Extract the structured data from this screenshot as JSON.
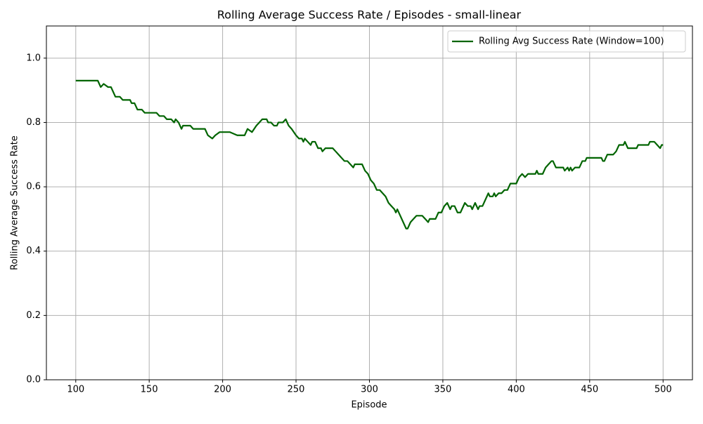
{
  "chart_data": {
    "type": "line",
    "title": "Rolling Average Success Rate / Episodes - small-linear",
    "xlabel": "Episode",
    "ylabel": "Rolling Average Success Rate",
    "x": [
      100,
      115,
      117,
      119,
      122,
      124,
      125,
      127,
      130,
      132,
      135,
      137,
      138,
      140,
      142,
      145,
      147,
      150,
      155,
      157,
      160,
      162,
      165,
      167,
      168,
      170,
      172,
      173,
      178,
      180,
      185,
      188,
      190,
      193,
      195,
      198,
      205,
      210,
      215,
      217,
      220,
      223,
      225,
      227,
      230,
      231,
      233,
      235,
      237,
      238,
      241,
      243,
      245,
      247,
      250,
      252,
      254,
      255,
      256,
      258,
      260,
      261,
      263,
      265,
      267,
      268,
      270,
      275,
      277,
      279,
      281,
      283,
      285,
      287,
      289,
      290,
      295,
      297,
      299,
      301,
      303,
      305,
      307,
      309,
      311,
      313,
      315,
      317,
      318,
      319,
      321,
      323,
      325,
      326,
      328,
      330,
      332,
      336,
      338,
      340,
      341,
      345,
      347,
      349,
      351,
      353,
      355,
      356,
      358,
      360,
      362,
      365,
      367,
      369,
      370,
      372,
      374,
      375,
      377,
      381,
      382,
      384,
      385,
      386,
      388,
      390,
      392,
      394,
      396,
      400,
      402,
      404,
      406,
      408,
      413,
      414,
      415,
      418,
      420,
      422,
      424,
      425,
      427,
      432,
      433,
      435,
      436,
      437,
      438,
      440,
      443,
      445,
      447,
      448,
      458,
      459,
      460,
      462,
      466,
      468,
      470,
      473,
      474,
      476,
      482,
      483,
      490,
      491,
      494,
      496,
      498,
      499,
      500
    ],
    "series": [
      {
        "name": "Rolling Avg Success Rate (Window=100)",
        "color": "#006400",
        "values": [
          0.93,
          0.93,
          0.91,
          0.92,
          0.91,
          0.91,
          0.9,
          0.88,
          0.88,
          0.87,
          0.87,
          0.87,
          0.86,
          0.86,
          0.84,
          0.84,
          0.83,
          0.83,
          0.83,
          0.82,
          0.82,
          0.81,
          0.81,
          0.8,
          0.81,
          0.8,
          0.78,
          0.79,
          0.79,
          0.78,
          0.78,
          0.78,
          0.76,
          0.75,
          0.76,
          0.77,
          0.77,
          0.76,
          0.76,
          0.78,
          0.77,
          0.79,
          0.8,
          0.81,
          0.81,
          0.8,
          0.8,
          0.79,
          0.79,
          0.8,
          0.8,
          0.81,
          0.79,
          0.78,
          0.76,
          0.75,
          0.75,
          0.74,
          0.75,
          0.74,
          0.73,
          0.74,
          0.74,
          0.72,
          0.72,
          0.71,
          0.72,
          0.72,
          0.71,
          0.7,
          0.69,
          0.68,
          0.68,
          0.67,
          0.66,
          0.67,
          0.67,
          0.65,
          0.64,
          0.62,
          0.61,
          0.59,
          0.59,
          0.58,
          0.57,
          0.55,
          0.54,
          0.53,
          0.52,
          0.53,
          0.51,
          0.49,
          0.47,
          0.47,
          0.49,
          0.5,
          0.51,
          0.51,
          0.5,
          0.49,
          0.5,
          0.5,
          0.52,
          0.52,
          0.54,
          0.55,
          0.53,
          0.54,
          0.54,
          0.52,
          0.52,
          0.55,
          0.54,
          0.54,
          0.53,
          0.55,
          0.53,
          0.54,
          0.54,
          0.58,
          0.57,
          0.57,
          0.58,
          0.57,
          0.58,
          0.58,
          0.59,
          0.59,
          0.61,
          0.61,
          0.63,
          0.64,
          0.63,
          0.64,
          0.64,
          0.65,
          0.64,
          0.64,
          0.66,
          0.67,
          0.68,
          0.68,
          0.66,
          0.66,
          0.65,
          0.66,
          0.65,
          0.66,
          0.65,
          0.66,
          0.66,
          0.68,
          0.68,
          0.69,
          0.69,
          0.68,
          0.68,
          0.7,
          0.7,
          0.71,
          0.73,
          0.73,
          0.74,
          0.72,
          0.72,
          0.73,
          0.73,
          0.74,
          0.74,
          0.73,
          0.72,
          0.73,
          0.73
        ]
      }
    ],
    "xlim": [
      80,
      520
    ],
    "xticks": [
      100,
      150,
      200,
      250,
      300,
      350,
      400,
      450,
      500
    ],
    "ylim": [
      0,
      1.1
    ],
    "yticks": [
      {
        "value": 0,
        "label": "0.0"
      },
      0.2,
      0.4,
      0.6,
      0.8,
      {
        "value": 1,
        "label": "1.0"
      }
    ],
    "grid": true,
    "legend": "upper right"
  }
}
